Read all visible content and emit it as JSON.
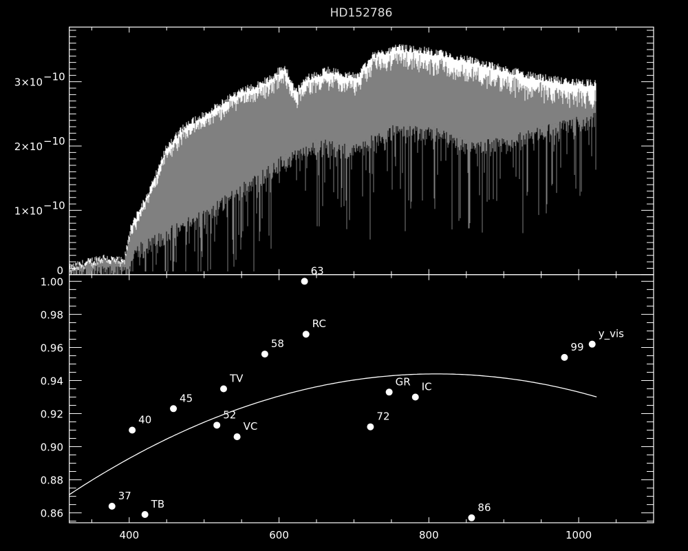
{
  "chart_data": [
    {
      "type": "area",
      "title": "HD152786",
      "xlim": [
        320,
        1100
      ],
      "ylim": [
        0,
        3.85e-10
      ],
      "x_ticks": [
        "400",
        "600",
        "800",
        "1000"
      ],
      "y_tick_values": [
        0,
        1e-10,
        2e-10,
        3e-10
      ],
      "y_ticks": [
        "0",
        "1×10",
        "2×10",
        "3×10"
      ],
      "y_tick_exponent": "−10",
      "flux_unit_scale": 1e-10,
      "series": [
        {
          "color": "#ffffff",
          "x": [
            320,
            365,
            393,
            402,
            429,
            448,
            475,
            521,
            548,
            576,
            608,
            622,
            640,
            668,
            704,
            723,
            759,
            796,
            851,
            888,
            943,
            979,
            1023
          ],
          "y": [
            0.12,
            0.29,
            0.22,
            0.74,
            1.38,
            1.96,
            2.34,
            2.66,
            2.87,
            2.98,
            3.25,
            2.87,
            3.09,
            3.2,
            3.09,
            3.41,
            3.54,
            3.5,
            3.36,
            3.25,
            3.09,
            3.03,
            2.98
          ]
        },
        {
          "color": "#808080",
          "x": [
            320,
            400,
            402,
            450,
            500,
            550,
            600,
            650,
            700,
            750,
            800,
            850,
            900,
            950,
            1023
          ],
          "y_low": [
            0.0,
            0.02,
            0.3,
            0.6,
            0.9,
            1.3,
            1.7,
            2.0,
            1.9,
            2.2,
            2.2,
            2.0,
            2.0,
            2.2,
            2.4
          ]
        }
      ]
    },
    {
      "type": "scatter",
      "xlim": [
        320,
        1100
      ],
      "ylim": [
        0.854,
        1.004
      ],
      "x_ticks": [
        "400",
        "600",
        "800",
        "1000"
      ],
      "y_ticks": [
        "0.86",
        "0.88",
        "0.90",
        "0.92",
        "0.94",
        "0.96",
        "0.98",
        "1.00"
      ],
      "points": [
        {
          "label": "37",
          "x": 377,
          "y": 0.864
        },
        {
          "label": "TB",
          "x": 421,
          "y": 0.859
        },
        {
          "label": "40",
          "x": 404,
          "y": 0.91
        },
        {
          "label": "45",
          "x": 459,
          "y": 0.923
        },
        {
          "label": "52",
          "x": 517,
          "y": 0.913
        },
        {
          "label": "TV",
          "x": 526,
          "y": 0.935
        },
        {
          "label": "VC",
          "x": 544,
          "y": 0.906
        },
        {
          "label": "58",
          "x": 581,
          "y": 0.956
        },
        {
          "label": "RC",
          "x": 636,
          "y": 0.968
        },
        {
          "label": "63",
          "x": 634,
          "y": 1.0
        },
        {
          "label": "72",
          "x": 722,
          "y": 0.912
        },
        {
          "label": "GR",
          "x": 747,
          "y": 0.933
        },
        {
          "label": "IC",
          "x": 782,
          "y": 0.93
        },
        {
          "label": "86",
          "x": 857,
          "y": 0.857
        },
        {
          "label": "99",
          "x": 981,
          "y": 0.954
        },
        {
          "label": "y_vis",
          "x": 1018,
          "y": 0.962
        }
      ],
      "fit_curve": {
        "type": "quadratic",
        "vertex_x": 810,
        "vertex_y": 0.944,
        "a": -3.04e-07,
        "x_from": 320,
        "x_to": 1024
      },
      "colors": {
        "background": "#000000",
        "foreground": "#ffffff",
        "spectrum": "#808080"
      }
    }
  ]
}
